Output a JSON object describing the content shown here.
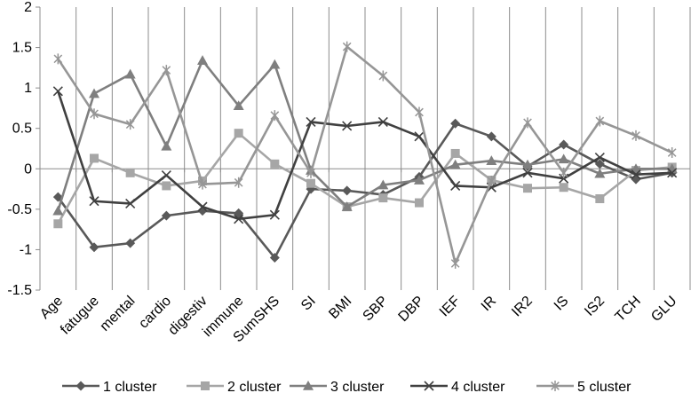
{
  "chart_data": {
    "type": "line",
    "title": "",
    "xlabel": "",
    "ylabel": "",
    "ylim": [
      -1.5,
      2
    ],
    "yticks": [
      -1.5,
      -1,
      -0.5,
      0,
      0.5,
      1,
      1.5,
      2
    ],
    "ytick_labels": [
      "-1.5",
      "-1",
      "-0.5",
      "0",
      "0.5",
      "1",
      "1.5",
      "2"
    ],
    "grid": "vertical",
    "legend_position": "bottom",
    "categories": [
      "Age",
      "fatugue",
      "mental",
      "cardio",
      "digestiv",
      "immune",
      "SumSHS",
      "SI",
      "BMI",
      "SBP",
      "DBP",
      "IEF",
      "IR",
      "IR2",
      "IS",
      "IS2",
      "TCH",
      "GLU"
    ],
    "series": [
      {
        "name": "1 cluster",
        "marker": "diamond",
        "color": "#595959",
        "values": [
          -0.35,
          -0.97,
          -0.92,
          -0.58,
          -0.52,
          -0.55,
          -1.1,
          -0.25,
          -0.27,
          -0.32,
          -0.1,
          0.56,
          0.4,
          0.03,
          0.3,
          0.06,
          -0.13,
          -0.05
        ]
      },
      {
        "name": "2 cluster",
        "marker": "square",
        "color": "#a6a6a6",
        "values": [
          -0.68,
          0.13,
          -0.05,
          -0.21,
          -0.15,
          0.44,
          0.06,
          -0.18,
          -0.47,
          -0.36,
          -0.42,
          0.19,
          -0.14,
          -0.24,
          -0.23,
          -0.37,
          -0.02,
          0.02
        ]
      },
      {
        "name": "3 cluster",
        "marker": "triangle",
        "color": "#7f7f7f",
        "values": [
          -0.52,
          0.93,
          1.17,
          0.28,
          1.34,
          0.78,
          1.29,
          -0.02,
          -0.47,
          -0.2,
          -0.14,
          0.05,
          0.1,
          0.05,
          0.12,
          -0.06,
          0.0,
          0.0
        ]
      },
      {
        "name": "4 cluster",
        "marker": "x",
        "color": "#404040",
        "values": [
          0.96,
          -0.4,
          -0.43,
          -0.08,
          -0.47,
          -0.62,
          -0.57,
          0.58,
          0.53,
          0.58,
          0.4,
          -0.21,
          -0.23,
          -0.05,
          -0.12,
          0.14,
          -0.07,
          -0.05
        ]
      },
      {
        "name": "5 cluster",
        "marker": "star",
        "color": "#969696",
        "values": [
          1.36,
          0.68,
          0.55,
          1.22,
          -0.19,
          -0.17,
          0.66,
          -0.05,
          1.51,
          1.15,
          0.7,
          -1.17,
          -0.15,
          0.57,
          -0.05,
          0.59,
          0.41,
          0.2
        ]
      }
    ]
  }
}
